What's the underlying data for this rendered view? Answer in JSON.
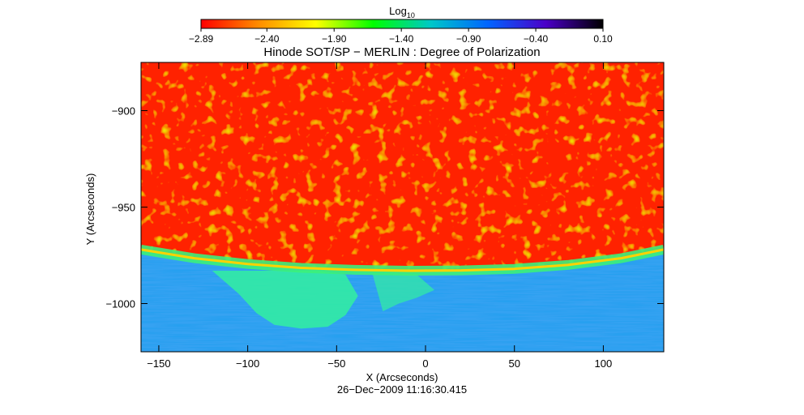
{
  "chart_data": {
    "type": "heatmap",
    "title": "Hinode SOT/SP − MERLIN : Degree of Polarization",
    "xlabel": "X (Arcseconds)",
    "ylabel": "Y (Arcseconds)",
    "timestamp": "26−Dec−2009 11:16:30.415",
    "xlim": [
      -160,
      134
    ],
    "ylim": [
      -1025,
      -875
    ],
    "x_ticks": [
      {
        "value": -150,
        "label": "−150"
      },
      {
        "value": -100,
        "label": "−100"
      },
      {
        "value": -50,
        "label": "−50"
      },
      {
        "value": 0,
        "label": "0"
      },
      {
        "value": 50,
        "label": "50"
      },
      {
        "value": 100,
        "label": "100"
      }
    ],
    "y_ticks": [
      {
        "value": -900,
        "label": "−900"
      },
      {
        "value": -950,
        "label": "−950"
      },
      {
        "value": -1000,
        "label": "−1000"
      }
    ],
    "colorbar": {
      "label_base": "Log",
      "label_sub": "10",
      "range": [
        -2.89,
        0.1
      ],
      "tick_values": [
        -2.89,
        -2.4,
        -1.9,
        -1.4,
        -0.9,
        -0.4,
        0.1
      ],
      "tick_labels": [
        "−2.89",
        "−2.40",
        "−1.90",
        "−1.40",
        "−0.90",
        "−0.40",
        "0.10"
      ],
      "colors": [
        "#ff0000",
        "#ff8c00",
        "#ffff00",
        "#00ff00",
        "#00c8c8",
        "#0064ff",
        "#4b00c8",
        "#000000"
      ]
    },
    "regions": [
      {
        "name": "disk",
        "value": -2.89,
        "color": "#ff2200"
      },
      {
        "name": "limb",
        "value": -2.2,
        "color": "#ffd200"
      },
      {
        "name": "off-limb",
        "value": -1.1,
        "color": "#28a0f0"
      }
    ],
    "limb_curve": {
      "x": [
        -160,
        -130,
        -100,
        -70,
        -40,
        -10,
        20,
        50,
        80,
        110,
        134
      ],
      "y": [
        -972,
        -976.5,
        -979.5,
        -981.5,
        -982.5,
        -983,
        -982.8,
        -982,
        -980,
        -976.5,
        -972
      ]
    },
    "grid": false
  }
}
